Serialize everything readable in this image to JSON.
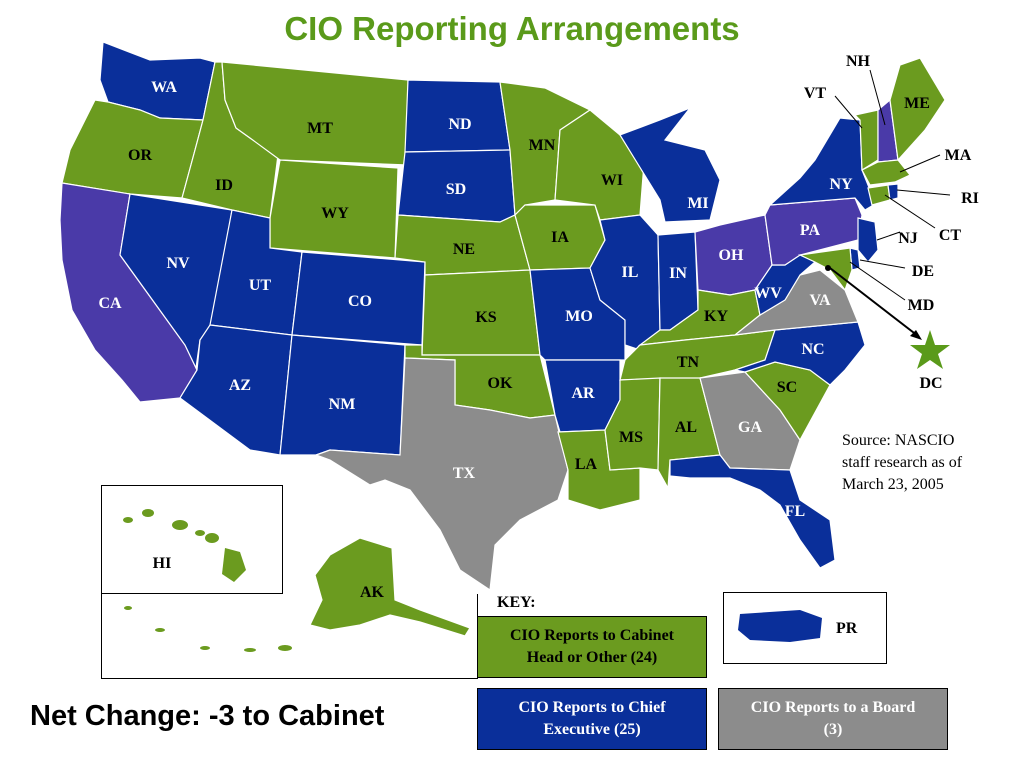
{
  "title": "CIO Reporting Arrangements",
  "colors": {
    "cabinet": "#6b9b1f",
    "chief_executive": "#0a2f9a",
    "board": "#8c8c8c",
    "mixed_purple": "#4a3aa8",
    "title": "#5a9a1a"
  },
  "states": {
    "WA": "WA",
    "OR": "OR",
    "CA": "CA",
    "NV": "NV",
    "ID": "ID",
    "MT": "MT",
    "WY": "WY",
    "UT": "UT",
    "AZ": "AZ",
    "CO": "CO",
    "NM": "NM",
    "ND": "ND",
    "SD": "SD",
    "NE": "NE",
    "KS": "KS",
    "OK": "OK",
    "TX": "TX",
    "MN": "MN",
    "IA": "IA",
    "MO": "MO",
    "AR": "AR",
    "LA": "LA",
    "WI": "WI",
    "IL": "IL",
    "MI": "MI",
    "IN": "IN",
    "OH": "OH",
    "KY": "KY",
    "TN": "TN",
    "MS": "MS",
    "AL": "AL",
    "GA": "GA",
    "FL": "FL",
    "SC": "SC",
    "NC": "NC",
    "VA": "VA",
    "WV": "WV",
    "PA": "PA",
    "NY": "NY",
    "VT": "VT",
    "NH": "NH",
    "ME": "ME",
    "MA": "MA",
    "RI": "RI",
    "CT": "CT",
    "NJ": "NJ",
    "DE": "DE",
    "MD": "MD",
    "DC": "DC",
    "HI": "HI",
    "AK": "AK",
    "PR": "PR"
  },
  "key": {
    "label": "KEY:",
    "cabinet_line1": "CIO Reports to Cabinet",
    "cabinet_line2": "Head or Other (24)",
    "chief_line1": "CIO Reports to Chief",
    "chief_line2": "Executive (25)",
    "board_line1": "CIO Reports to a Board",
    "board_line2": "(3)"
  },
  "source": {
    "line1": "Source: NASCIO",
    "line2": "staff research as of",
    "line3": "March 23, 2005"
  },
  "net_change": "Net Change: -3 to Cabinet"
}
